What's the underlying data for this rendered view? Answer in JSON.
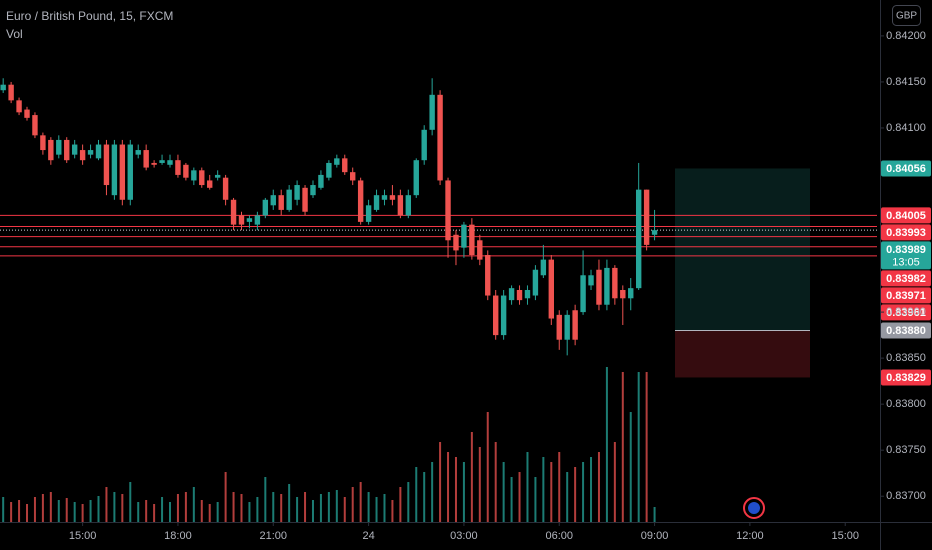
{
  "chart_data": {
    "type": "candlestick",
    "title": "Euro / British Pound, 15, FXCM",
    "volume_label": "Vol",
    "currency": "GBP",
    "up_color": "#26a69a",
    "down_color": "#ef5350",
    "open": [
      0.84141,
      0.84147,
      0.8413,
      0.8412,
      0.84114,
      0.84092,
      0.84087,
      0.84071,
      0.84087,
      0.84071,
      0.84076,
      0.84071,
      0.84067,
      0.84082,
      0.84027,
      0.84082,
      0.84022,
      0.84071,
      0.84076,
      0.84062,
      0.84062,
      0.8406,
      0.84065,
      0.8406,
      0.84043,
      0.84054,
      0.84043,
      0.84046,
      0.84046,
      0.84022,
      0.84005,
      0.83998,
      0.83995,
      0.84005,
      0.84016,
      0.84027,
      0.84011,
      0.84022,
      0.84035,
      0.84027,
      0.84035,
      0.84046,
      0.8406,
      0.84067,
      0.84052,
      0.84043,
      0.83998,
      0.84011,
      0.84022,
      0.84027,
      0.84027,
      0.84005,
      0.84027,
      0.84065,
      0.84098,
      0.84136,
      0.84043,
      0.83984,
      0.8397,
      0.83995,
      0.83978,
      0.83962,
      0.83918,
      0.83875,
      0.83913,
      0.83924,
      0.83915,
      0.83918,
      0.8394,
      0.83957,
      0.83897,
      0.8387,
      0.83902,
      0.839,
      0.83929,
      0.83946,
      0.83908,
      0.83948,
      0.83924,
      0.83915,
      0.83926,
      0.84033,
      0.83984
    ],
    "high": [
      0.84154,
      0.8415,
      0.84133,
      0.84123,
      0.84117,
      0.84095,
      0.8409,
      0.84092,
      0.8409,
      0.84087,
      0.84082,
      0.84082,
      0.84087,
      0.84087,
      0.84087,
      0.84087,
      0.84087,
      0.84082,
      0.84082,
      0.84065,
      0.84071,
      0.84071,
      0.84071,
      0.84062,
      0.84057,
      0.84057,
      0.84049,
      0.84054,
      0.84049,
      0.84024,
      0.84009,
      0.84005,
      0.84009,
      0.84024,
      0.84033,
      0.84033,
      0.84038,
      0.84043,
      0.84038,
      0.84043,
      0.84054,
      0.84065,
      0.84071,
      0.84071,
      0.84057,
      0.84046,
      0.84022,
      0.84033,
      0.84033,
      0.84038,
      0.84033,
      0.84033,
      0.84067,
      0.84103,
      0.84154,
      0.84141,
      0.84046,
      0.83989,
      0.83998,
      0.84002,
      0.83984,
      0.83967,
      0.83924,
      0.83924,
      0.83929,
      0.83929,
      0.83929,
      0.83951,
      0.83973,
      0.83962,
      0.83902,
      0.83902,
      0.83908,
      0.83967,
      0.83946,
      0.83957,
      0.83957,
      0.83951,
      0.83929,
      0.83937,
      0.84062,
      0.84033,
      0.84011
    ],
    "low": [
      0.84138,
      0.84127,
      0.84114,
      0.84108,
      0.84089,
      0.84071,
      0.8406,
      0.84067,
      0.84062,
      0.84067,
      0.8406,
      0.84067,
      0.84065,
      0.84027,
      0.84022,
      0.84016,
      0.84016,
      0.84067,
      0.84054,
      0.84057,
      0.8406,
      0.84057,
      0.84046,
      0.84043,
      0.84038,
      0.84035,
      0.84033,
      0.84043,
      0.84016,
      0.83989,
      0.83989,
      0.83991,
      0.83989,
      0.84002,
      0.84011,
      0.84005,
      0.84009,
      0.84016,
      0.84005,
      0.84024,
      0.84033,
      0.84043,
      0.84057,
      0.84049,
      0.84038,
      0.83995,
      0.83995,
      0.84009,
      0.84016,
      0.84016,
      0.84002,
      0.84002,
      0.84024,
      0.8406,
      0.84092,
      0.84038,
      0.83959,
      0.83951,
      0.83959,
      0.83957,
      0.83951,
      0.83913,
      0.8387,
      0.8387,
      0.83908,
      0.83908,
      0.83908,
      0.83913,
      0.83937,
      0.83886,
      0.83859,
      0.83853,
      0.83864,
      0.83897,
      0.83924,
      0.83902,
      0.83902,
      0.83908,
      0.83886,
      0.83902,
      0.83924,
      0.83967,
      0.83978
    ],
    "close": [
      0.84147,
      0.8413,
      0.84117,
      0.84111,
      0.84092,
      0.84076,
      0.84065,
      0.84087,
      0.84065,
      0.84082,
      0.84065,
      0.84076,
      0.84082,
      0.84038,
      0.84082,
      0.84022,
      0.84082,
      0.84076,
      0.84057,
      0.8406,
      0.84065,
      0.84065,
      0.84049,
      0.84046,
      0.84054,
      0.84038,
      0.84035,
      0.84049,
      0.84022,
      0.83995,
      0.83995,
      0.84002,
      0.84005,
      0.84022,
      0.84027,
      0.84011,
      0.84033,
      0.84038,
      0.84009,
      0.84038,
      0.84049,
      0.84062,
      0.84067,
      0.84052,
      0.84043,
      0.83998,
      0.84016,
      0.84027,
      0.84027,
      0.84022,
      0.84005,
      0.84027,
      0.84065,
      0.84098,
      0.84136,
      0.84043,
      0.83978,
      0.83967,
      0.83995,
      0.83962,
      0.83957,
      0.83918,
      0.83875,
      0.83918,
      0.83926,
      0.83913,
      0.83924,
      0.83946,
      0.83957,
      0.83893,
      0.8387,
      0.83897,
      0.8387,
      0.8394,
      0.8394,
      0.83908,
      0.83948,
      0.83915,
      0.83915,
      0.83926,
      0.84033,
      0.83973,
      0.83989
    ],
    "volume": [
      25,
      20,
      22,
      18,
      25,
      28,
      30,
      22,
      24,
      20,
      18,
      22,
      26,
      35,
      30,
      28,
      40,
      20,
      22,
      18,
      25,
      20,
      28,
      30,
      35,
      22,
      18,
      20,
      50,
      30,
      28,
      20,
      25,
      45,
      30,
      28,
      38,
      25,
      30,
      22,
      28,
      30,
      32,
      25,
      35,
      40,
      30,
      25,
      28,
      22,
      35,
      40,
      55,
      50,
      60,
      80,
      70,
      65,
      60,
      90,
      75,
      110,
      80,
      60,
      45,
      50,
      70,
      45,
      65,
      60,
      70,
      50,
      55,
      60,
      65,
      70,
      155,
      80,
      150,
      110,
      150,
      150,
      15
    ],
    "xlim": [
      -0.4,
      110
    ],
    "xticks": [
      {
        "value": 10,
        "label": "15:00"
      },
      {
        "value": 22,
        "label": "18:00"
      },
      {
        "value": 34,
        "label": "21:00"
      },
      {
        "value": 46,
        "label": "24"
      },
      {
        "value": 58,
        "label": "03:00"
      },
      {
        "value": 70,
        "label": "06:00"
      },
      {
        "value": 82,
        "label": "09:00"
      },
      {
        "value": 94,
        "label": "12:00"
      },
      {
        "value": 106,
        "label": "15:00"
      }
    ],
    "ylim": [
      0.83672,
      0.84239
    ],
    "yticks": [
      {
        "value": 0.842,
        "label": "0.84200"
      },
      {
        "value": 0.8415,
        "label": "0.84150"
      },
      {
        "value": 0.841,
        "label": "0.84100"
      },
      {
        "value": 0.839,
        "label": "0.83900"
      },
      {
        "value": 0.8385,
        "label": "0.83850"
      },
      {
        "value": 0.838,
        "label": "0.83800"
      },
      {
        "value": 0.8375,
        "label": "0.83750"
      },
      {
        "value": 0.837,
        "label": "0.83700"
      }
    ],
    "price_labels": [
      {
        "value": 0.84056,
        "kind": "target",
        "color": "#26a69a"
      },
      {
        "value": 0.84005,
        "kind": "level",
        "color": "#f23645"
      },
      {
        "value": 0.83993,
        "kind": "level",
        "color": "#f23645"
      },
      {
        "value": 0.83989,
        "kind": "current",
        "color": "#26a69a",
        "countdown": "13:05"
      },
      {
        "value": 0.83982,
        "kind": "level",
        "color": "#f23645"
      },
      {
        "value": 0.83971,
        "kind": "level",
        "color": "#f23645"
      },
      {
        "value": 0.83961,
        "kind": "level",
        "color": "#f23645"
      },
      {
        "value": 0.8388,
        "label": "0.83880",
        "kind": "entry",
        "color": "#9598a1"
      },
      {
        "value": 0.83829,
        "kind": "stop",
        "color": "#f23645"
      }
    ]
  }
}
